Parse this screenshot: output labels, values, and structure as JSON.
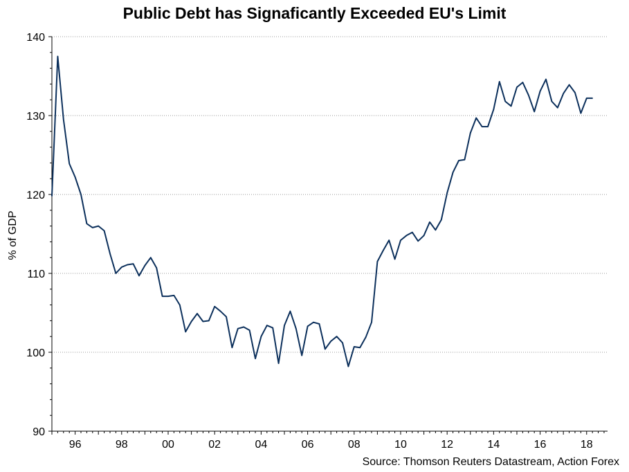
{
  "chart_data": {
    "type": "line",
    "title": "Public Debt has Signaficantly Exceeded EU's Limit",
    "source": "Source: Thomson Reuters Datastream, Action Forex",
    "xlabel": "",
    "ylabel": "% of GDP",
    "ylim": [
      90,
      140
    ],
    "xlim": [
      1995.0,
      2018.9
    ],
    "yticks": [
      90,
      100,
      110,
      120,
      130,
      140
    ],
    "xticks": [
      {
        "value": 1996,
        "label": "96"
      },
      {
        "value": 1998,
        "label": "98"
      },
      {
        "value": 2000,
        "label": "00"
      },
      {
        "value": 2002,
        "label": "02"
      },
      {
        "value": 2004,
        "label": "04"
      },
      {
        "value": 2006,
        "label": "06"
      },
      {
        "value": 2008,
        "label": "08"
      },
      {
        "value": 2010,
        "label": "10"
      },
      {
        "value": 2012,
        "label": "12"
      },
      {
        "value": 2014,
        "label": "14"
      },
      {
        "value": 2016,
        "label": "16"
      },
      {
        "value": 2018,
        "label": "18"
      }
    ],
    "grid": true,
    "line_color": "#0b2f5b",
    "series": [
      {
        "name": "Public Debt",
        "x": [
          1995.0,
          1995.25,
          1995.5,
          1995.75,
          1996.0,
          1996.25,
          1996.5,
          1996.75,
          1997.0,
          1997.25,
          1997.5,
          1997.75,
          1998.0,
          1998.25,
          1998.5,
          1998.75,
          1999.0,
          1999.25,
          1999.5,
          1999.75,
          2000.0,
          2000.25,
          2000.5,
          2000.75,
          2001.0,
          2001.25,
          2001.5,
          2001.75,
          2002.0,
          2002.25,
          2002.5,
          2002.75,
          2003.0,
          2003.25,
          2003.5,
          2003.75,
          2004.0,
          2004.25,
          2004.5,
          2004.75,
          2005.0,
          2005.25,
          2005.5,
          2005.75,
          2006.0,
          2006.25,
          2006.5,
          2006.75,
          2007.0,
          2007.25,
          2007.5,
          2007.75,
          2008.0,
          2008.25,
          2008.5,
          2008.75,
          2009.0,
          2009.25,
          2009.5,
          2009.75,
          2010.0,
          2010.25,
          2010.5,
          2010.75,
          2011.0,
          2011.25,
          2011.5,
          2011.75,
          2012.0,
          2012.25,
          2012.5,
          2012.75,
          2013.0,
          2013.25,
          2013.5,
          2013.75,
          2014.0,
          2014.25,
          2014.5,
          2014.75,
          2015.0,
          2015.25,
          2015.5,
          2015.75,
          2016.0,
          2016.25,
          2016.5,
          2016.75,
          2017.0,
          2017.25,
          2017.5,
          2017.75,
          2018.0,
          2018.25
        ],
        "values": [
          119.8,
          137.5,
          129.5,
          123.9,
          122.2,
          120.0,
          116.3,
          115.8,
          116.0,
          115.4,
          112.5,
          110.0,
          110.8,
          111.1,
          111.2,
          109.7,
          111.0,
          112.0,
          110.7,
          107.1,
          107.1,
          107.2,
          106.0,
          102.6,
          103.9,
          104.9,
          103.9,
          104.0,
          105.8,
          105.2,
          104.5,
          100.6,
          103.0,
          103.2,
          102.8,
          99.2,
          102.0,
          103.4,
          103.1,
          98.6,
          103.4,
          105.2,
          103.0,
          99.6,
          103.3,
          103.8,
          103.6,
          100.4,
          101.4,
          102.0,
          101.2,
          98.2,
          100.7,
          100.6,
          101.9,
          103.8,
          111.5,
          112.9,
          114.2,
          111.8,
          114.2,
          114.8,
          115.2,
          114.1,
          114.8,
          116.5,
          115.5,
          116.8,
          120.2,
          122.8,
          124.3,
          124.4,
          127.8,
          129.7,
          128.6,
          128.6,
          130.8,
          134.3,
          131.8,
          131.2,
          133.6,
          134.2,
          132.6,
          130.5,
          133.1,
          134.6,
          131.8,
          131.0,
          132.8,
          133.9,
          132.9,
          130.3,
          132.2,
          132.2
        ]
      }
    ]
  }
}
